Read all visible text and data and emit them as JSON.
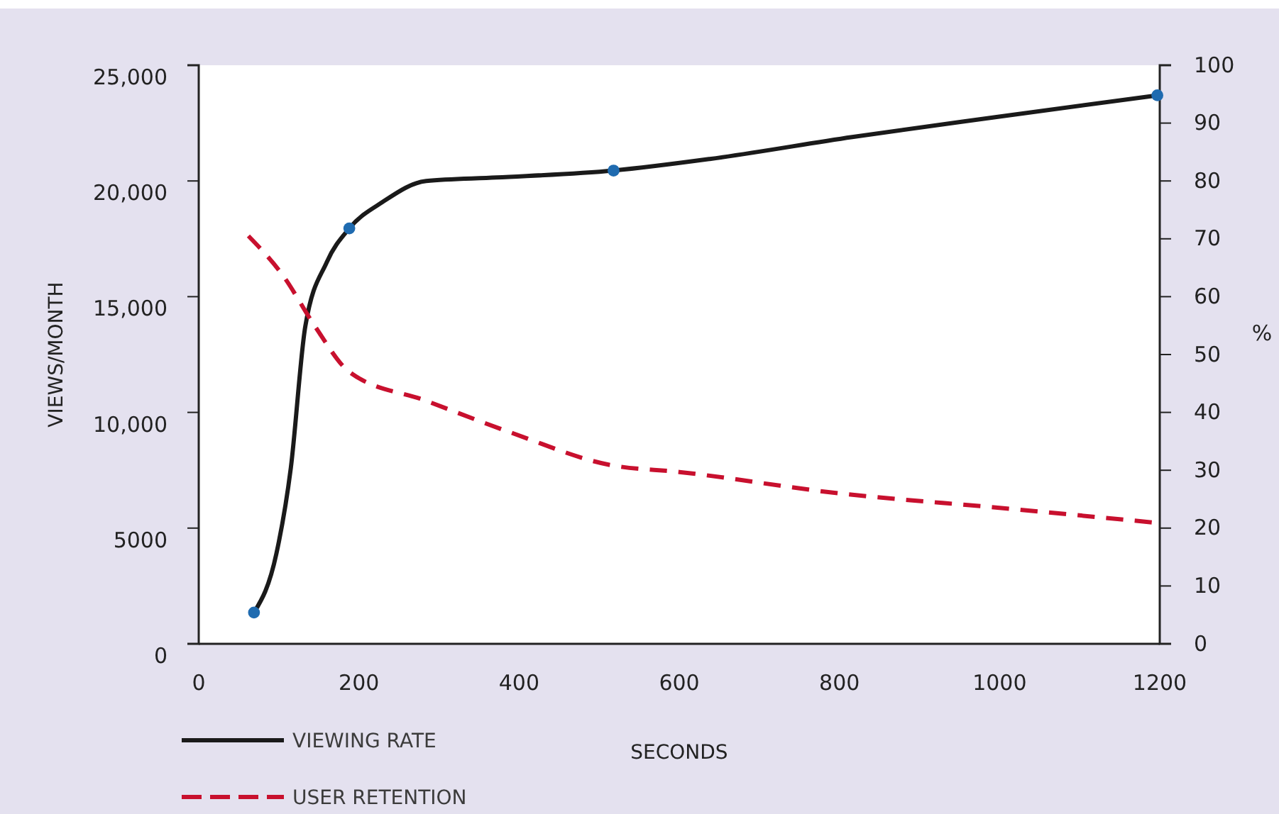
{
  "chart_data": {
    "type": "line",
    "xlabel": "SECONDS",
    "ylabel": "VIEWS/MONTH",
    "y2label": "%",
    "xlim": [
      0,
      1200
    ],
    "xticks": [
      0,
      200,
      400,
      600,
      800,
      1000,
      1200
    ],
    "ylim": [
      0,
      25000
    ],
    "yticks": [
      0,
      5000,
      {
        "value": 10000,
        "label": "10,000"
      },
      {
        "value": 15000,
        "label": "15,000"
      },
      {
        "value": 20000,
        "label": "20,000"
      },
      {
        "value": 25000,
        "label": "25,000"
      }
    ],
    "y2lim": [
      0,
      100
    ],
    "y2ticks": [
      0,
      10,
      20,
      30,
      40,
      50,
      60,
      70,
      80,
      90,
      100
    ],
    "grid": false,
    "legend": "bottom left",
    "series": [
      {
        "name": "VIEWING RATE",
        "color": "#1a1a1a",
        "line_style": "solid",
        "x": [
          69,
          97,
          115,
          133,
          160,
          188,
          230,
          284,
          372,
          518,
          638,
          816,
          993,
          1197
        ],
        "values": [
          1350,
          3900,
          7600,
          13700,
          16500,
          17950,
          19100,
          20000,
          20150,
          20450,
          20950,
          21900,
          22750,
          23700
        ]
      },
      {
        "type": "scatter",
        "color": "#1f6bb0",
        "marker": "circle",
        "x": [
          69,
          188,
          518,
          1197
        ],
        "values": [
          1350,
          17950,
          20450,
          23700
        ]
      },
      {
        "name": "USER RETENTION",
        "axis": "y2",
        "color": "#c8102e",
        "line_style": "dashed",
        "x": [
          62,
          106,
          145,
          188,
          284,
          390,
          514,
          600,
          800,
          1000,
          1190
        ],
        "values": [
          70.5,
          63.5,
          54.9,
          47,
          42,
          36.5,
          30.9,
          29.7,
          26,
          23.5,
          21
        ]
      }
    ]
  }
}
